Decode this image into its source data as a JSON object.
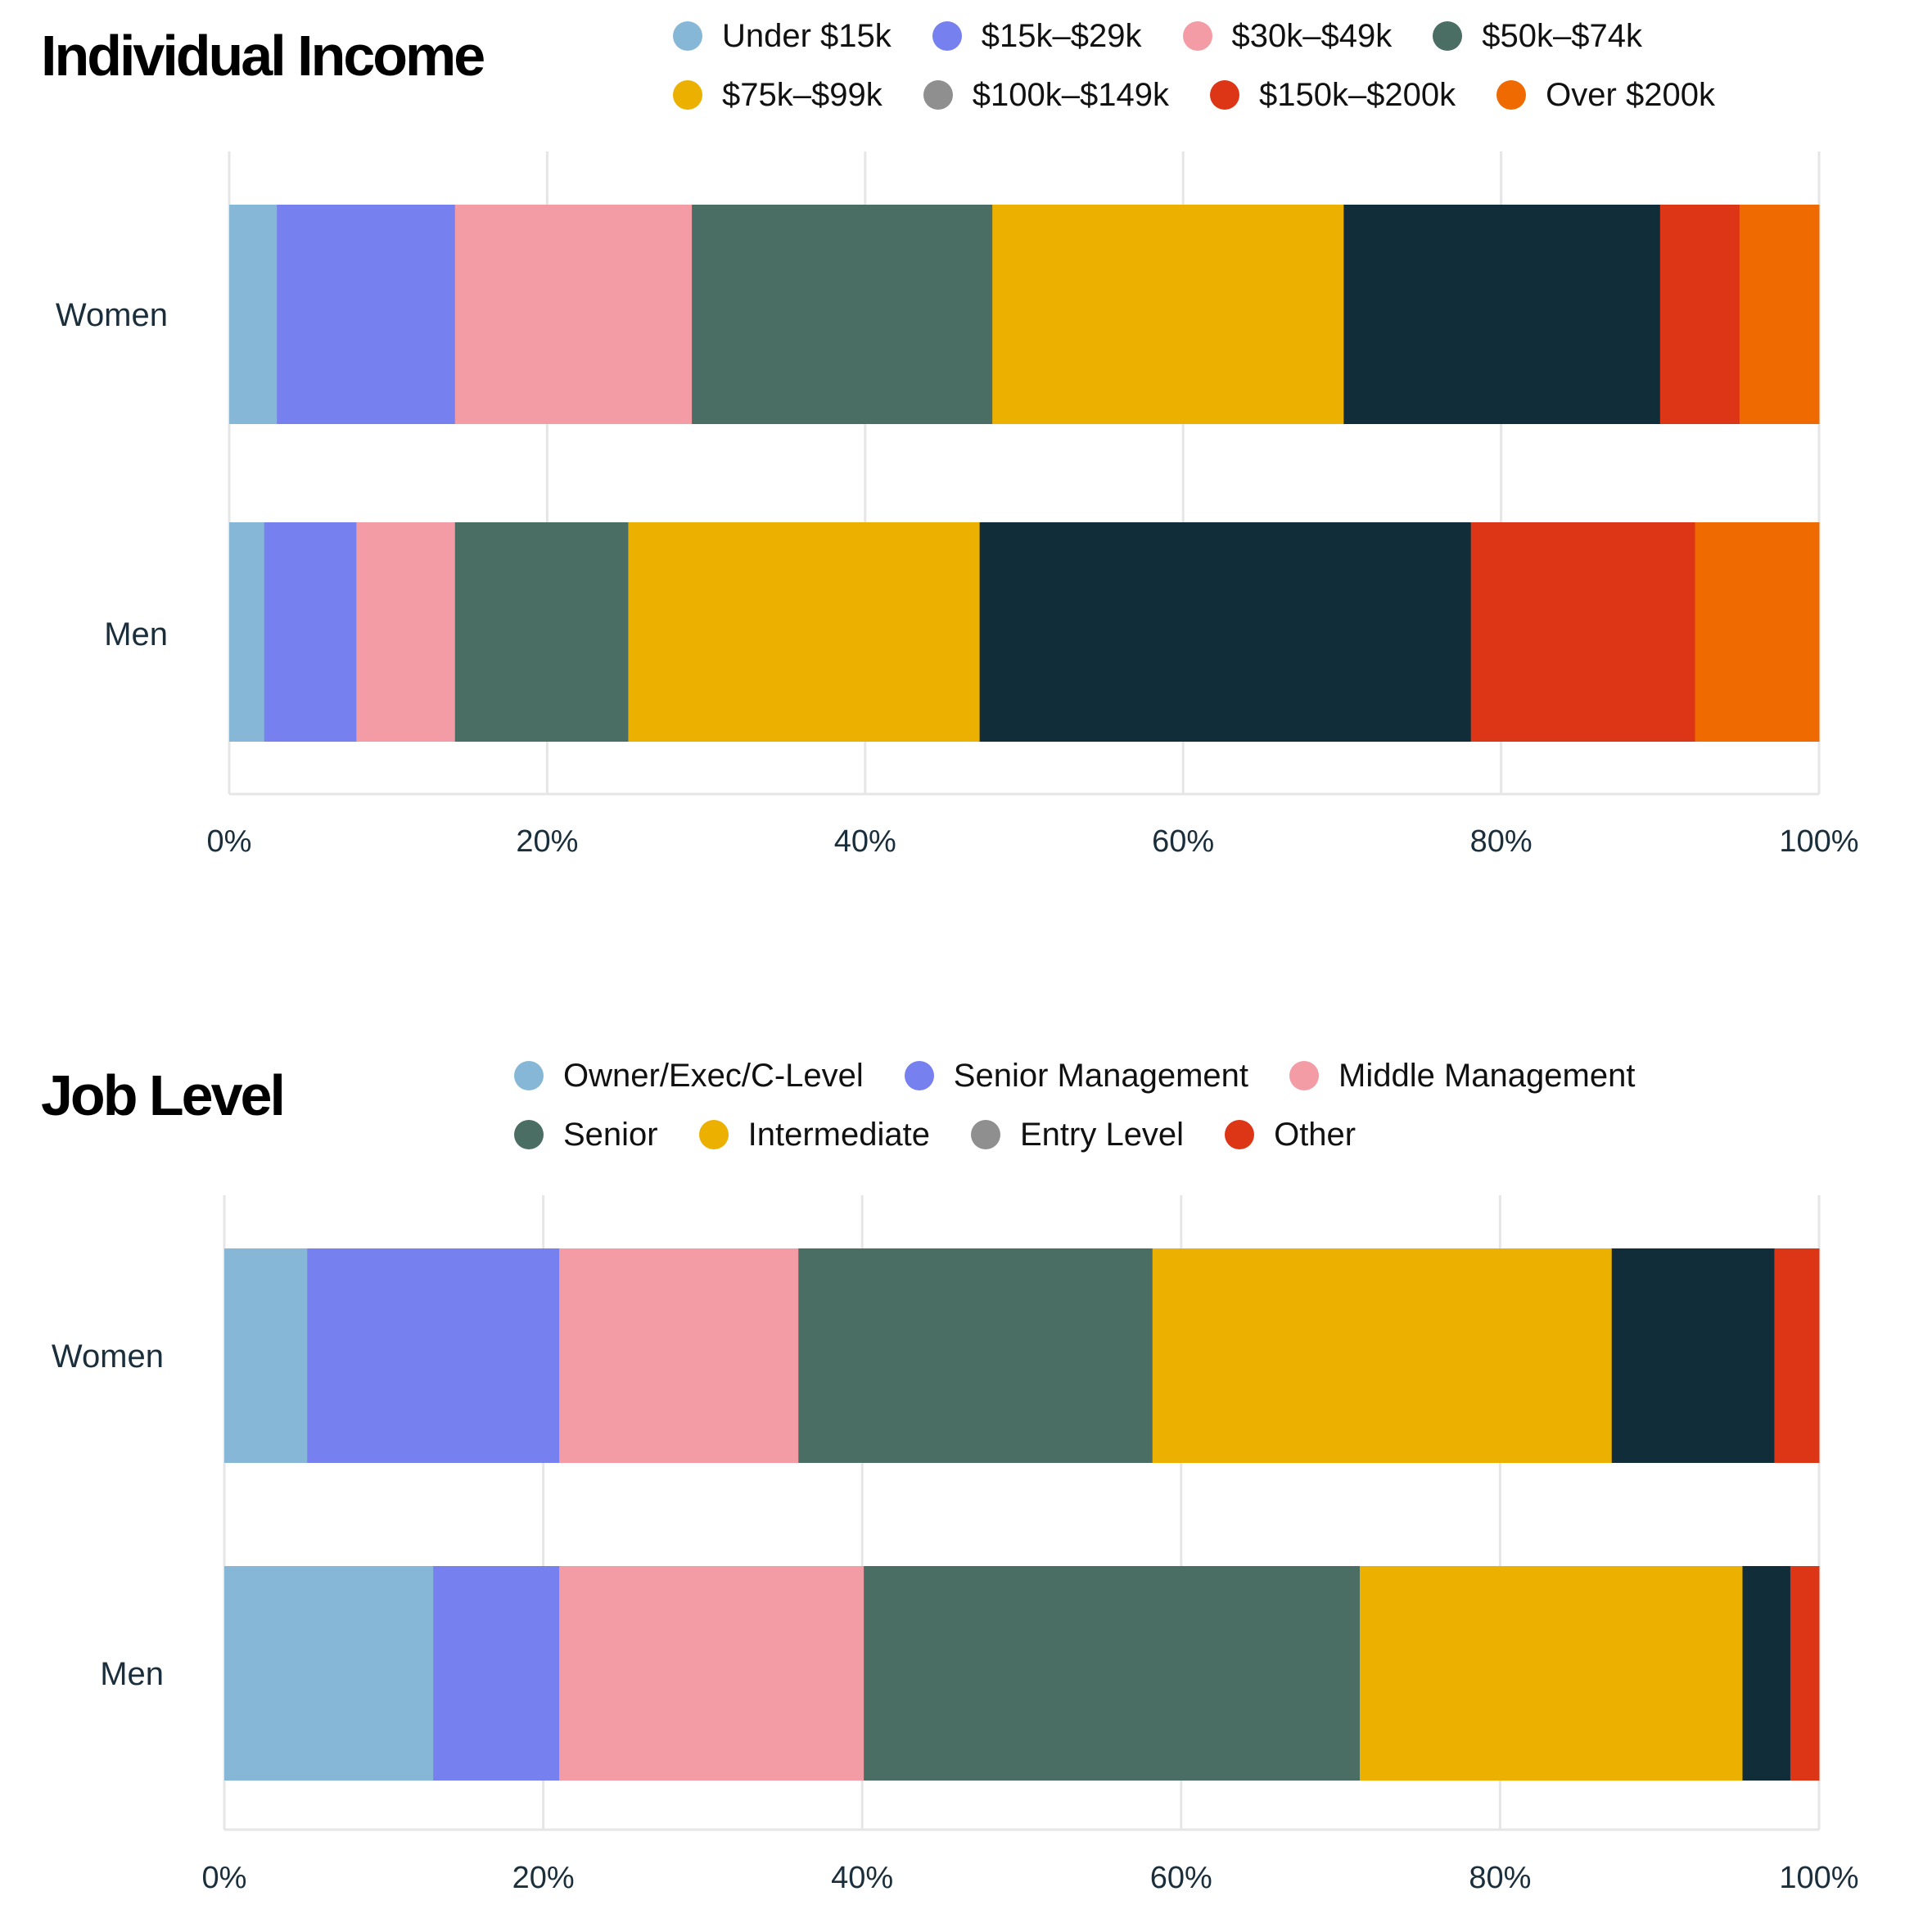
{
  "chart_data": [
    {
      "type": "bar",
      "orientation": "horizontal",
      "stacked": true,
      "title": "Individual Income",
      "categories": [
        "Women",
        "Men"
      ],
      "xlim": [
        0,
        100
      ],
      "x_ticks": [
        "0%",
        "20%",
        "40%",
        "60%",
        "80%",
        "100%"
      ],
      "grid": true,
      "legend_position": "top",
      "series": [
        {
          "name": "Under $15k",
          "color": "#87b7d6",
          "values": [
            3,
            2.2
          ]
        },
        {
          "name": "$15k–$29k",
          "color": "#7680ef",
          "values": [
            11.2,
            5.8
          ]
        },
        {
          "name": "$30k–$49k",
          "color": "#f39ca5",
          "values": [
            14.9,
            6.2
          ]
        },
        {
          "name": "$50k–$74k",
          "color": "#4a6e63",
          "values": [
            18.9,
            10.9
          ]
        },
        {
          "name": "$75k–$99k",
          "color": "#ebb000",
          "values": [
            22.1,
            22.1
          ]
        },
        {
          "name": "$100k–$149k",
          "color": "#122d3a",
          "legend_color": "#8f8f8f",
          "values": [
            19.9,
            30.9
          ]
        },
        {
          "name": "$150k–$200k",
          "color": "#dd3617",
          "values": [
            5.0,
            14.1
          ]
        },
        {
          "name": "Over $200k",
          "color": "#ef6a00",
          "values": [
            5.0,
            7.8
          ]
        }
      ]
    },
    {
      "type": "bar",
      "orientation": "horizontal",
      "stacked": true,
      "title": "Job Level",
      "categories": [
        "Women",
        "Men"
      ],
      "xlim": [
        0,
        100
      ],
      "x_ticks": [
        "0%",
        "20%",
        "40%",
        "60%",
        "80%",
        "100%"
      ],
      "grid": true,
      "legend_position": "top",
      "series": [
        {
          "name": "Owner/Exec/C-Level",
          "color": "#87b7d6",
          "values": [
            5.2,
            13.1
          ]
        },
        {
          "name": "Senior Management",
          "color": "#7680ef",
          "values": [
            15.8,
            7.9
          ]
        },
        {
          "name": "Middle Management",
          "color": "#f39ca5",
          "values": [
            15.0,
            19.1
          ]
        },
        {
          "name": "Senior",
          "color": "#4a6e63",
          "values": [
            22.2,
            31.1
          ]
        },
        {
          "name": "Intermediate",
          "color": "#ebb000",
          "values": [
            28.8,
            24.0
          ]
        },
        {
          "name": "Entry Level",
          "color": "#122d3a",
          "legend_color": "#8f8f8f",
          "values": [
            10.2,
            3.0
          ]
        },
        {
          "name": "Other",
          "color": "#dd3617",
          "values": [
            2.8,
            1.8
          ]
        }
      ]
    }
  ]
}
